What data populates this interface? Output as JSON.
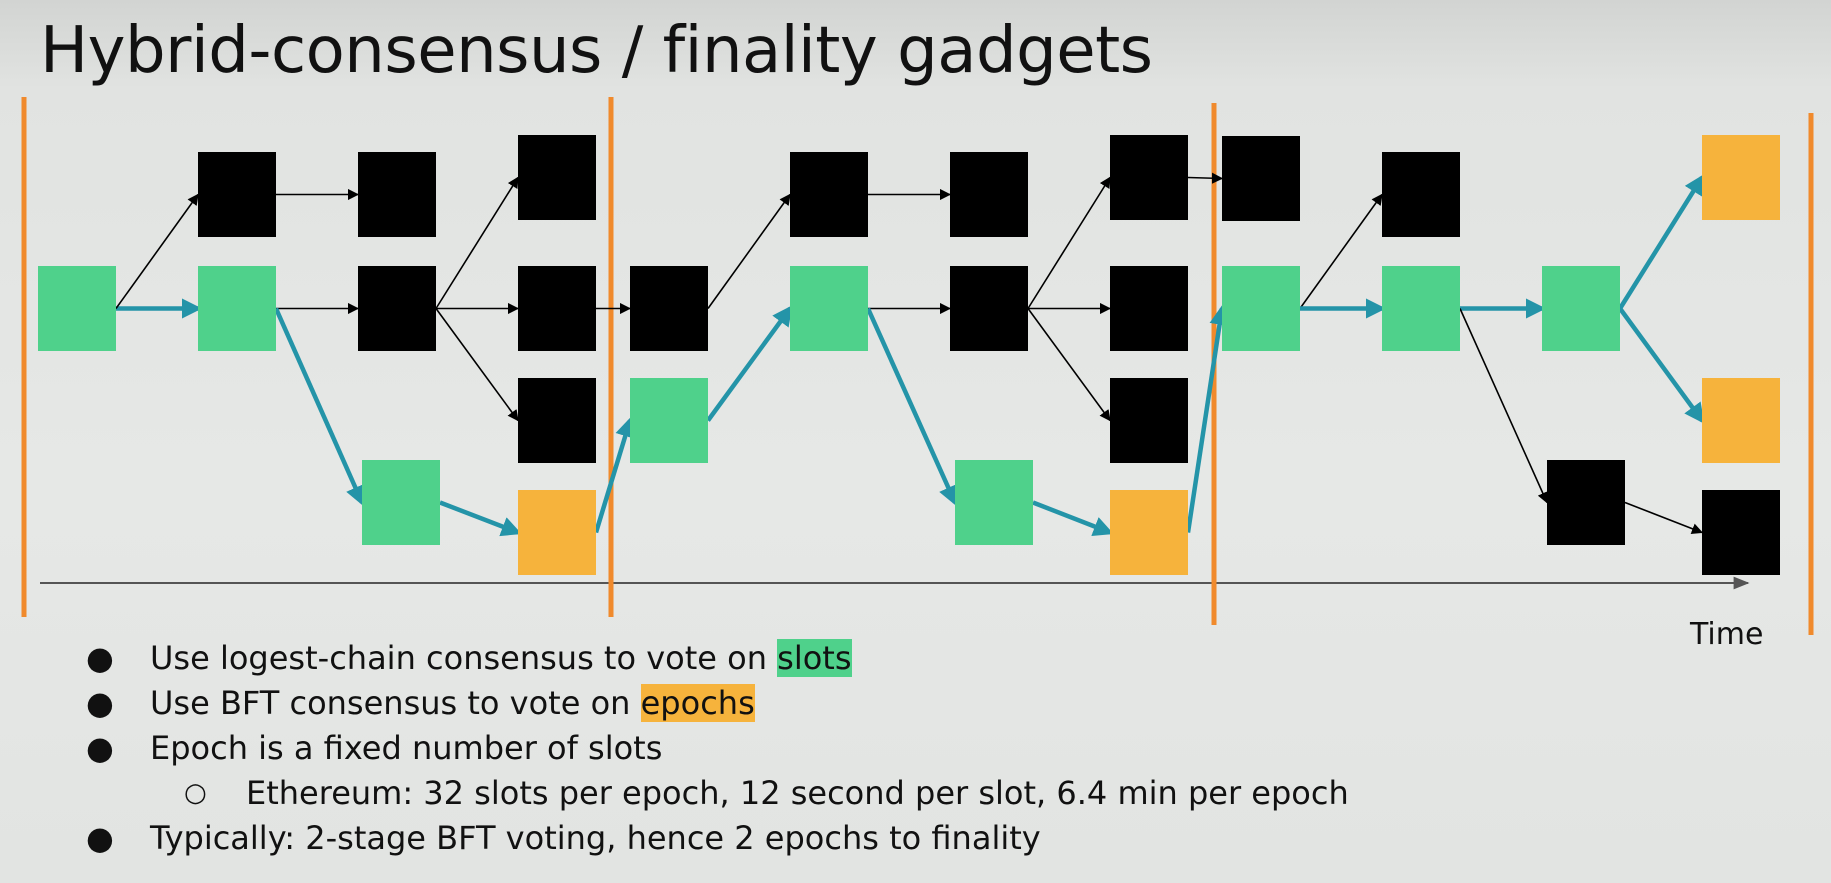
{
  "title": "Hybrid-consensus / finality gadgets",
  "diagram": {
    "time_label": "Time",
    "colors": {
      "slot_block": "#4fd18b",
      "epoch_block": "#f6b33c",
      "fork_block": "#000000",
      "chain_arrow": "#2494a8",
      "epoch_boundary": "#f08a2c",
      "time_axis": "#555555"
    },
    "legend_words": {
      "slots": "slots",
      "epochs": "epochs"
    }
  },
  "bullets": [
    {
      "text": "Use logest-chain consensus to vote on ",
      "highlight": "slots",
      "highlight_color": "green",
      "level": 1
    },
    {
      "text": "Use BFT consensus to vote on ",
      "highlight": "epochs",
      "highlight_color": "orange",
      "level": 1
    },
    {
      "text": "Epoch is a fixed number of slots",
      "highlight": "",
      "level": 1
    },
    {
      "text": "Ethereum: 32 slots per epoch, 12 second per slot, 6.4 min per epoch",
      "highlight": "",
      "level": 2
    },
    {
      "text": "Typically: 2-stage BFT voting, hence 2 epochs to finality",
      "highlight": "",
      "level": 1
    }
  ],
  "bullet_glyphs": {
    "level1": "●",
    "level2": "○"
  }
}
